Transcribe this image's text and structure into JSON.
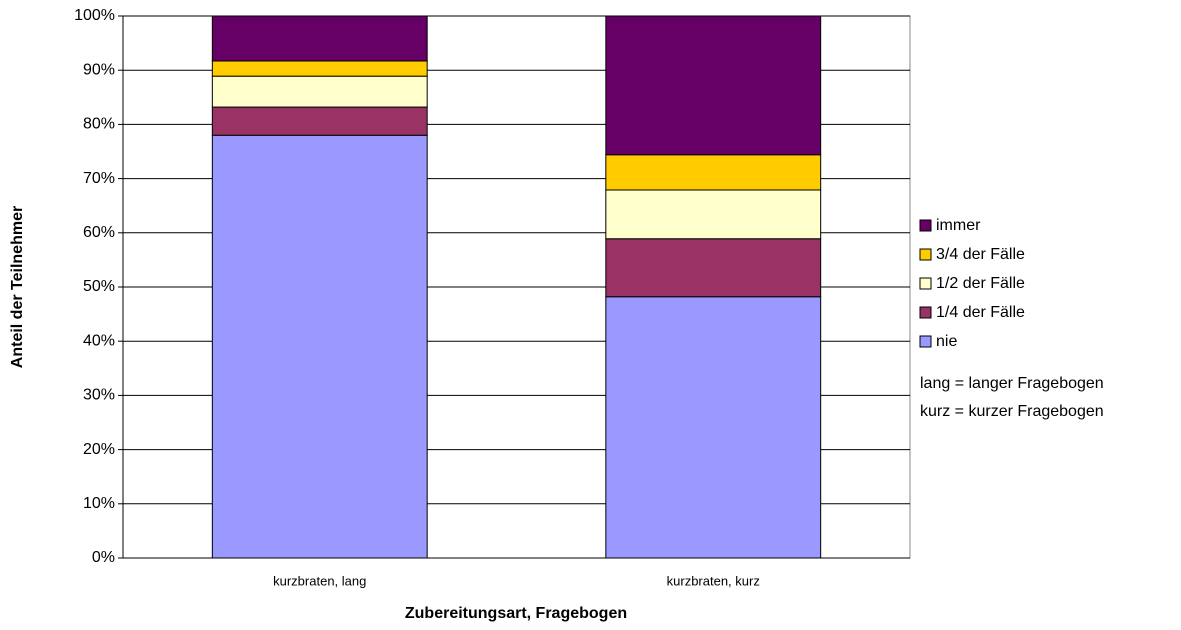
{
  "chart_data": {
    "type": "stacked_bar",
    "x_label": "Zubereitungsart, Fragebogen",
    "y_label": "Anteil der Teilnehmer",
    "categories": [
      "kurzbraten, lang",
      "kurzbraten, kurz"
    ],
    "series": [
      {
        "name": "nie",
        "color": "#9999ff",
        "values": [
          78.0,
          48.2
        ]
      },
      {
        "name": "1/4 der Fälle",
        "color": "#993366",
        "values": [
          5.2,
          10.7
        ]
      },
      {
        "name": "1/2 der Fälle",
        "color": "#ffffcc",
        "values": [
          5.7,
          9.0
        ]
      },
      {
        "name": "3/4 der Fälle",
        "color": "#ffcc00",
        "values": [
          2.8,
          6.5
        ]
      },
      {
        "name": "immer",
        "color": "#660066",
        "values": [
          8.3,
          25.6
        ]
      }
    ],
    "annotations": [
      "lang = langer Fragebogen",
      "kurz = kurzer Fragebogen"
    ],
    "ylim": [
      0,
      100
    ],
    "yticks": [
      {
        "value": 0,
        "label": "0%"
      },
      {
        "value": 10,
        "label": "10%"
      },
      {
        "value": 20,
        "label": "20%"
      },
      {
        "value": 30,
        "label": "30%"
      },
      {
        "value": 40,
        "label": "40%"
      },
      {
        "value": 50,
        "label": "50%"
      },
      {
        "value": 60,
        "label": "60%"
      },
      {
        "value": 70,
        "label": "70%"
      },
      {
        "value": 80,
        "label": "80%"
      },
      {
        "value": 90,
        "label": "90%"
      },
      {
        "value": 100,
        "label": "100%"
      }
    ],
    "grid": true,
    "legend": "right"
  }
}
